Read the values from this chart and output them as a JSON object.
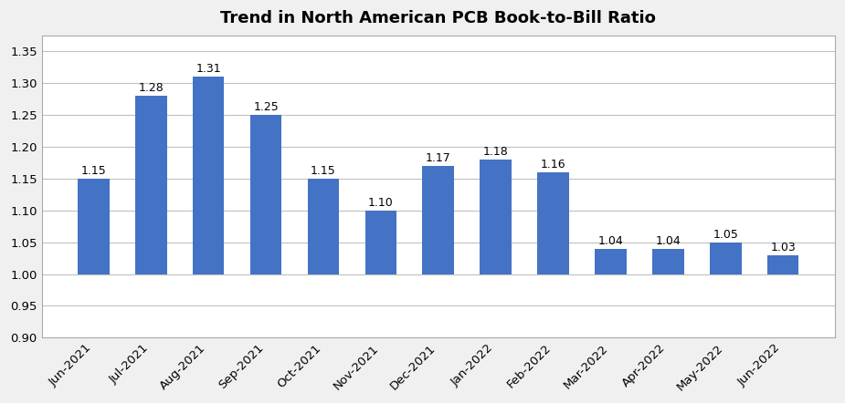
{
  "title": "Trend in North American PCB Book-to-Bill Ratio",
  "categories": [
    "Jun-2021",
    "Jul-2021",
    "Aug-2021",
    "Sep-2021",
    "Oct-2021",
    "Nov-2021",
    "Dec-2021",
    "Jan-2022",
    "Feb-2022",
    "Mar-2022",
    "Apr-2022",
    "May-2022",
    "Jun-2022"
  ],
  "values": [
    1.15,
    1.28,
    1.31,
    1.25,
    1.15,
    1.1,
    1.17,
    1.18,
    1.16,
    1.04,
    1.04,
    1.05,
    1.03
  ],
  "bar_color": "#4472C4",
  "bar_bottom": 1.0,
  "ylim": [
    0.9,
    1.375
  ],
  "yticks": [
    0.9,
    0.95,
    1.0,
    1.05,
    1.1,
    1.15,
    1.2,
    1.25,
    1.3,
    1.35
  ],
  "label_fontsize": 9,
  "title_fontsize": 13,
  "tick_fontsize": 9.5,
  "background_color": "#ffffff",
  "grid_color": "#c0c0c0",
  "bar_width": 0.55,
  "border_color": "#aaaaaa",
  "figure_bg": "#f0f0f0"
}
